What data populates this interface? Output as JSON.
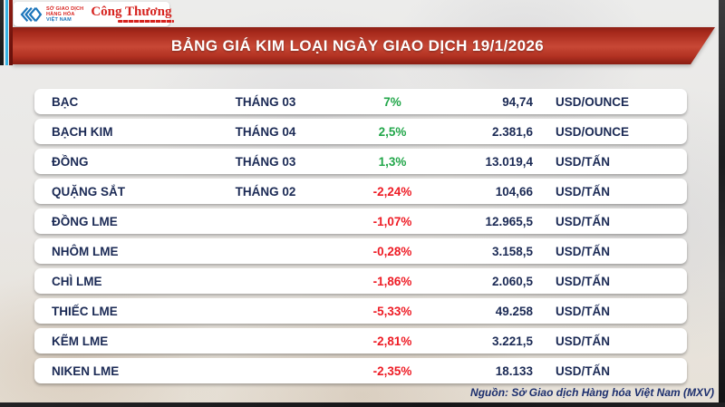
{
  "header": {
    "logo": {
      "mxv_lines": [
        "SỞ GIAO DỊCH",
        "HÀNG HÓA",
        "VIỆT NAM"
      ],
      "congthuong": "Công Thương"
    },
    "title": "BẢNG GIÁ KIM LOẠI NGÀY GIAO DỊCH 19/1/2026"
  },
  "table": {
    "rows": [
      {
        "name": "BẠC",
        "month": "THÁNG 03",
        "change": "7%",
        "direction": "up",
        "price": "94,74",
        "unit": "USD/OUNCE"
      },
      {
        "name": "BẠCH KIM",
        "month": "THÁNG 04",
        "change": "2,5%",
        "direction": "up",
        "price": "2.381,6",
        "unit": "USD/OUNCE"
      },
      {
        "name": "ĐỒNG",
        "month": "THÁNG 03",
        "change": "1,3%",
        "direction": "up",
        "price": "13.019,4",
        "unit": "USD/TẤN"
      },
      {
        "name": "QUẶNG SẮT",
        "month": "THÁNG 02",
        "change": "-2,24%",
        "direction": "down",
        "price": "104,66",
        "unit": "USD/TẤN"
      },
      {
        "name": "ĐỒNG LME",
        "month": "",
        "change": "-1,07%",
        "direction": "down",
        "price": "12.965,5",
        "unit": "USD/TẤN"
      },
      {
        "name": "NHÔM LME",
        "month": "",
        "change": "-0,28%",
        "direction": "down",
        "price": "3.158,5",
        "unit": "USD/TẤN"
      },
      {
        "name": "CHÌ LME",
        "month": "",
        "change": "-1,86%",
        "direction": "down",
        "price": "2.060,5",
        "unit": "USD/TẤN"
      },
      {
        "name": "THIẾC LME",
        "month": "",
        "change": "-5,33%",
        "direction": "down",
        "price": "49.258",
        "unit": "USD/TẤN"
      },
      {
        "name": "KẼM LME",
        "month": "",
        "change": "-2,81%",
        "direction": "down",
        "price": "3.221,5",
        "unit": "USD/TẤN"
      },
      {
        "name": "NIKEN LME",
        "month": "",
        "change": "-2,35%",
        "direction": "down",
        "price": "18.133",
        "unit": "USD/TẤN"
      }
    ]
  },
  "footer": {
    "source": "Nguồn: Sở Giao dịch Hàng hóa Việt Nam (MXV)"
  },
  "colors": {
    "up": "#21a649",
    "down": "#ee1c25",
    "navy_text": "#1b2a55",
    "banner_red": "#b23222",
    "accent_cyan": "#35b2e4",
    "logo_red": "#d6231f",
    "logo_blue": "#1b75bb"
  },
  "chart_data": {
    "type": "table",
    "title": "BẢNG GIÁ KIM LOẠI NGÀY GIAO DỊCH 19/1/2026",
    "columns": [
      "commodity",
      "contract_month",
      "change_percent",
      "price",
      "unit"
    ],
    "rows": [
      [
        "BẠC",
        "THÁNG 03",
        7.0,
        94.74,
        "USD/OUNCE"
      ],
      [
        "BẠCH KIM",
        "THÁNG 04",
        2.5,
        2381.6,
        "USD/OUNCE"
      ],
      [
        "ĐỒNG",
        "THÁNG 03",
        1.3,
        13019.4,
        "USD/TẤN"
      ],
      [
        "QUẶNG SẮT",
        "THÁNG 02",
        -2.24,
        104.66,
        "USD/TẤN"
      ],
      [
        "ĐỒNG LME",
        "",
        -1.07,
        12965.5,
        "USD/TẤN"
      ],
      [
        "NHÔM LME",
        "",
        -0.28,
        3158.5,
        "USD/TẤN"
      ],
      [
        "CHÌ LME",
        "",
        -1.86,
        2060.5,
        "USD/TẤN"
      ],
      [
        "THIẾC LME",
        "",
        -5.33,
        49258,
        "USD/TẤN"
      ],
      [
        "KẼM LME",
        "",
        -2.81,
        3221.5,
        "USD/TẤN"
      ],
      [
        "NIKEN LME",
        "",
        -2.35,
        18133,
        "USD/TẤN"
      ]
    ],
    "source_note": "Nguồn: Sở Giao dịch Hàng hóa Việt Nam (MXV)"
  }
}
